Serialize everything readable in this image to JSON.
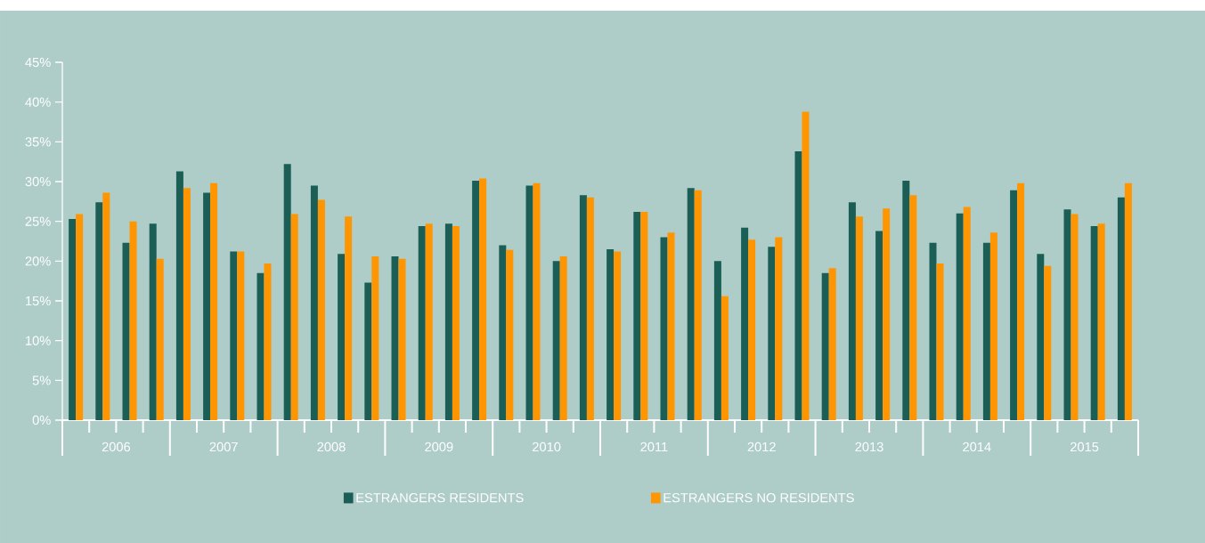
{
  "chart_data": {
    "type": "bar",
    "categories": [
      null,
      null,
      null,
      null,
      null,
      null,
      null,
      null,
      null,
      null,
      null,
      null,
      null,
      null,
      null,
      null,
      null,
      null,
      null,
      null,
      null,
      null,
      null,
      null,
      null,
      null,
      null,
      null,
      null,
      null,
      null,
      null,
      null,
      null,
      null,
      null,
      null,
      null,
      null,
      null
    ],
    "series": [
      {
        "name": "ESTRANGERS RESIDENTS",
        "color": "#1b5e55",
        "values": [
          25.3,
          27.4,
          22.3,
          24.7,
          31.3,
          28.6,
          21.2,
          18.5,
          32.2,
          29.5,
          20.9,
          17.3,
          20.6,
          24.4,
          24.7,
          30.1,
          22.0,
          29.5,
          20.0,
          28.3,
          21.5,
          26.2,
          23.0,
          29.2,
          20.0,
          24.2,
          21.8,
          33.8,
          18.5,
          27.4,
          23.8,
          30.1,
          22.3,
          26.0,
          22.3,
          28.9,
          20.9,
          26.5,
          24.4,
          28.0
        ]
      },
      {
        "name": "ESTRANGERS NO RESIDENTS",
        "color": "#ff9500",
        "values": [
          25.9,
          28.6,
          25.0,
          20.3,
          29.2,
          29.8,
          21.2,
          19.7,
          25.9,
          27.7,
          25.6,
          20.6,
          20.3,
          24.7,
          24.4,
          30.4,
          21.4,
          29.8,
          20.6,
          28.0,
          21.2,
          26.2,
          23.6,
          28.9,
          15.6,
          22.7,
          23.0,
          38.8,
          19.1,
          25.6,
          26.6,
          28.3,
          19.7,
          26.8,
          23.6,
          29.8,
          19.4,
          25.9,
          24.7,
          29.8
        ]
      }
    ],
    "annotations": [
      "2006",
      "2007",
      "2008",
      "2009",
      "2010",
      "2011",
      "2012",
      "2013",
      "2014",
      "2015"
    ],
    "ylim": [
      0,
      45
    ],
    "yticks": [
      {
        "value": 0,
        "label": "0%"
      },
      {
        "value": 5,
        "label": "5%"
      },
      {
        "value": 10,
        "label": "10%"
      },
      {
        "value": 15,
        "label": "15%"
      },
      {
        "value": 20,
        "label": "20%"
      },
      {
        "value": 25,
        "label": "25%"
      },
      {
        "value": 30,
        "label": "30%"
      },
      {
        "value": 35,
        "label": "35%"
      },
      {
        "value": 40,
        "label": "40%"
      },
      {
        "value": 45,
        "label": "45%"
      }
    ],
    "legend": "bottom"
  }
}
